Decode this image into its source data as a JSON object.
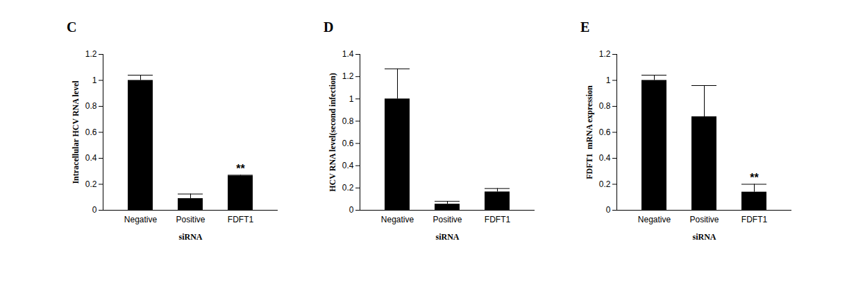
{
  "chart_data": [
    {
      "type": "bar",
      "title": "C",
      "x_label": "siRNA",
      "y_label": "Intracellular HCV RNA level",
      "categories": [
        "Negative",
        "Positive",
        "FDFT1"
      ],
      "values": [
        1.0,
        0.09,
        0.265
      ],
      "errors": [
        0.04,
        0.035,
        0.005
      ],
      "color": "#000000",
      "ylim": [
        0,
        1.2
      ],
      "yticks": [
        0,
        0.2,
        0.4,
        0.6,
        0.8,
        1,
        1.2
      ],
      "annotations": [
        {
          "category": "FDFT1",
          "text": "**"
        }
      ]
    },
    {
      "type": "bar",
      "title": "D",
      "x_label": "siRNA",
      "y_label": "HCV RNA level(second infection)",
      "categories": [
        "Negative",
        "Positive",
        "FDFT1"
      ],
      "values": [
        1.0,
        0.055,
        0.165
      ],
      "errors": [
        0.27,
        0.025,
        0.03
      ],
      "color": "#000000",
      "ylim": [
        0,
        1.4
      ],
      "yticks": [
        0,
        0.2,
        0.4,
        0.6,
        0.8,
        1,
        1.2,
        1.4
      ],
      "annotations": []
    },
    {
      "type": "bar",
      "title": "E",
      "x_label": "siRNA",
      "y_label": "FDFT1  mRNA expression",
      "categories": [
        "Negative",
        "Positive",
        "FDFT1"
      ],
      "values": [
        1.0,
        0.72,
        0.14
      ],
      "errors": [
        0.04,
        0.24,
        0.06
      ],
      "color": "#000000",
      "ylim": [
        0,
        1.2
      ],
      "yticks": [
        0,
        0.2,
        0.4,
        0.6,
        0.8,
        1,
        1.2
      ],
      "annotations": [
        {
          "category": "FDFT1",
          "text": "**"
        }
      ]
    }
  ]
}
